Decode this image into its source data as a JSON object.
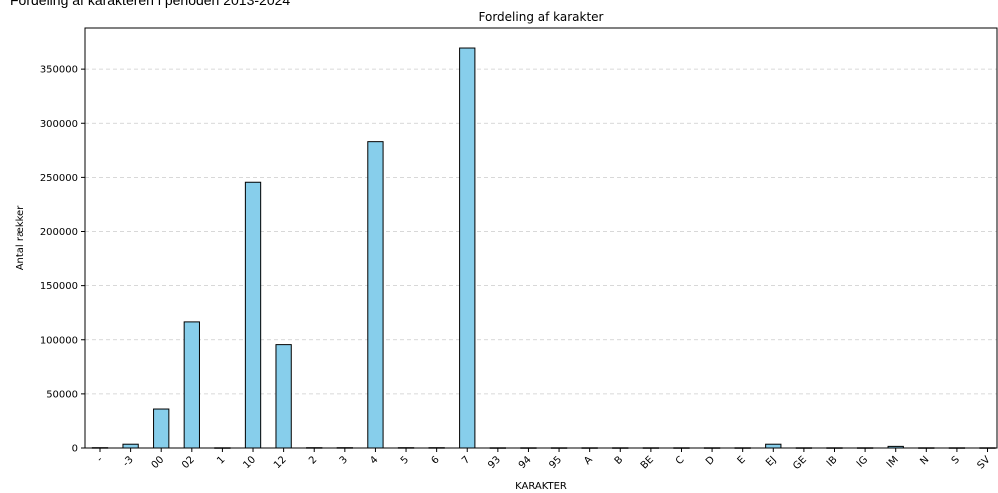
{
  "page": {
    "heading": "Fordeling af karakteren i perioden 2013-2024"
  },
  "chart_data": {
    "type": "bar",
    "title": "Fordeling af karakter",
    "xlabel": "KARAKTER",
    "ylabel": "Antal rækker",
    "categories": [
      "-",
      "-3",
      "00",
      "02",
      "1",
      "10",
      "12",
      "2",
      "3",
      "4",
      "5",
      "6",
      "7",
      "93",
      "94",
      "95",
      "A",
      "B",
      "BE",
      "C",
      "D",
      "E",
      "EJ",
      "GE",
      "IB",
      "IG",
      "IM",
      "N",
      "S",
      "SV"
    ],
    "values": [
      300,
      3500,
      36000,
      116500,
      200,
      245500,
      95500,
      300,
      300,
      283000,
      300,
      300,
      369500,
      200,
      200,
      200,
      200,
      200,
      200,
      200,
      200,
      200,
      3500,
      200,
      200,
      200,
      1500,
      200,
      200,
      200
    ],
    "yticks": [
      0,
      50000,
      100000,
      150000,
      200000,
      250000,
      300000,
      350000
    ],
    "ylim": [
      0,
      388000
    ],
    "grid": "y-dashed",
    "colors": {
      "bar_fill": "#87ceeb",
      "bar_edge": "#000000",
      "grid": "#cccccc"
    }
  }
}
